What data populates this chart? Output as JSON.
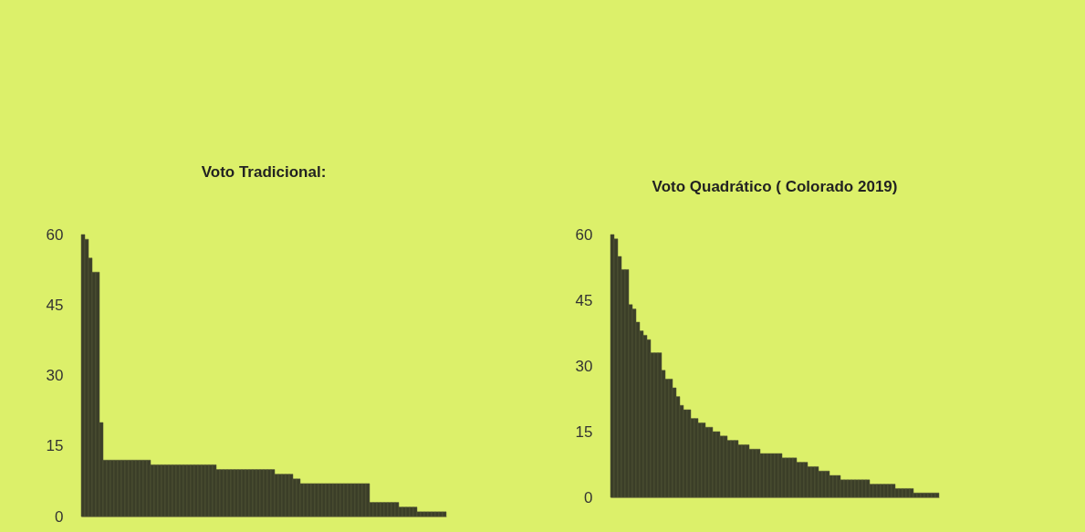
{
  "chart_data": [
    {
      "type": "bar",
      "title": "Voto Tradicional:",
      "categories": [
        null,
        null,
        null,
        null,
        null,
        null,
        null,
        null,
        null,
        null,
        null,
        null,
        null,
        null,
        null,
        null,
        null,
        null,
        null,
        null,
        null,
        null,
        null,
        null,
        null,
        null,
        null,
        null,
        null,
        null,
        null,
        null,
        null,
        null,
        null,
        null,
        null,
        null,
        null,
        null,
        null,
        null,
        null,
        null,
        null,
        null,
        null,
        null,
        null,
        null,
        null,
        null,
        null,
        null,
        null,
        null,
        null,
        null,
        null,
        null,
        null,
        null,
        null,
        null,
        null,
        null,
        null,
        null,
        null,
        null,
        null,
        null,
        null,
        null,
        null,
        null,
        null,
        null,
        null,
        null,
        null,
        null,
        null,
        null,
        null,
        null,
        null,
        null,
        null,
        null,
        null,
        null,
        null,
        null,
        null,
        null,
        null,
        null,
        null,
        null
      ],
      "values": [
        60,
        59,
        55,
        52,
        52,
        20,
        12,
        12,
        12,
        12,
        12,
        12,
        12,
        12,
        12,
        12,
        12,
        12,
        12,
        11,
        11,
        11,
        11,
        11,
        11,
        11,
        11,
        11,
        11,
        11,
        11,
        11,
        11,
        11,
        11,
        11,
        11,
        10,
        10,
        10,
        10,
        10,
        10,
        10,
        10,
        10,
        10,
        10,
        10,
        10,
        10,
        10,
        10,
        9,
        9,
        9,
        9,
        9,
        8,
        8,
        7,
        7,
        7,
        7,
        7,
        7,
        7,
        7,
        7,
        7,
        7,
        7,
        7,
        7,
        7,
        7,
        7,
        7,
        7,
        3,
        3,
        3,
        3,
        3,
        3,
        3,
        3,
        2,
        2,
        2,
        2,
        2,
        1,
        1,
        1,
        1,
        1,
        1,
        1,
        1
      ],
      "color": "#3b3e28",
      "ylim": [
        0,
        60
      ],
      "yticks": [
        0,
        15,
        30,
        45,
        60
      ],
      "grid": false,
      "tick_labels": "y"
    },
    {
      "type": "bar",
      "title": "Voto Quadrático ( Colorado 2019)",
      "categories": [
        null,
        null,
        null,
        null,
        null,
        null,
        null,
        null,
        null,
        null,
        null,
        null,
        null,
        null,
        null,
        null,
        null,
        null,
        null,
        null,
        null,
        null,
        null,
        null,
        null,
        null,
        null,
        null,
        null,
        null,
        null,
        null,
        null,
        null,
        null,
        null,
        null,
        null,
        null,
        null,
        null,
        null,
        null,
        null,
        null,
        null,
        null,
        null,
        null,
        null,
        null,
        null,
        null,
        null,
        null,
        null,
        null,
        null,
        null,
        null,
        null,
        null,
        null,
        null,
        null,
        null,
        null,
        null,
        null,
        null,
        null,
        null,
        null,
        null,
        null,
        null,
        null,
        null,
        null,
        null,
        null,
        null,
        null,
        null,
        null,
        null,
        null,
        null,
        null,
        null
      ],
      "values": [
        60,
        59,
        55,
        52,
        52,
        44,
        43,
        40,
        38,
        37,
        36,
        33,
        33,
        33,
        29,
        27,
        27,
        25,
        23,
        21,
        20,
        20,
        18,
        18,
        17,
        17,
        16,
        16,
        15,
        15,
        14,
        14,
        13,
        13,
        13,
        12,
        12,
        12,
        11,
        11,
        11,
        10,
        10,
        10,
        10,
        10,
        10,
        9,
        9,
        9,
        9,
        8,
        8,
        8,
        7,
        7,
        7,
        6,
        6,
        6,
        5,
        5,
        5,
        4,
        4,
        4,
        4,
        4,
        4,
        4,
        4,
        3,
        3,
        3,
        3,
        3,
        3,
        3,
        2,
        2,
        2,
        2,
        2,
        1,
        1,
        1,
        1,
        1,
        1,
        1
      ],
      "color": "#3b3e28",
      "ylim": [
        0,
        60
      ],
      "yticks": [
        0,
        15,
        30,
        45,
        60
      ],
      "grid": false,
      "tick_labels": "y"
    }
  ]
}
